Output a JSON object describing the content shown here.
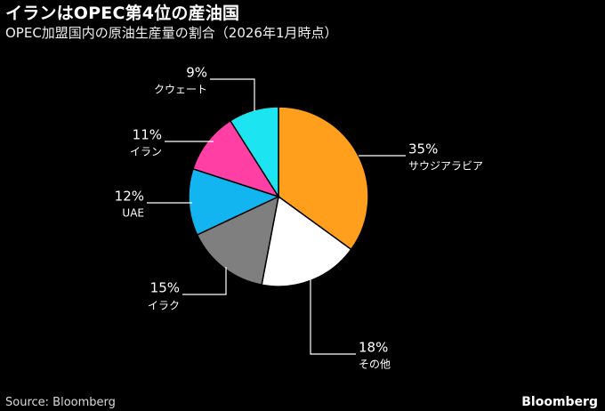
{
  "title": "イランはOPEC第4位の産油国",
  "subtitle": "OPEC加盟国内の原油生産量の割合（2026年1月時点）",
  "source": "Source: Bloomberg",
  "brand": "Bloomberg",
  "chart_data": {
    "type": "pie",
    "title": "イランはOPEC第4位の産油国",
    "subtitle": "OPEC加盟国内の原油生産量の割合（2026年1月時点）",
    "unit": "%",
    "start_angle": "12 o'clock",
    "direction": "clockwise",
    "slices": [
      {
        "label": "サウジアラビア",
        "value": 35,
        "value_label": "35%",
        "color": "#ff9f1c"
      },
      {
        "label": "その他",
        "value": 18,
        "value_label": "18%",
        "color": "#ffffff"
      },
      {
        "label": "イラク",
        "value": 15,
        "value_label": "15%",
        "color": "#7f7f7f"
      },
      {
        "label": "UAE",
        "value": 12,
        "value_label": "12%",
        "color": "#12b5f0"
      },
      {
        "label": "イラン",
        "value": 11,
        "value_label": "11%",
        "color": "#ff3fa4"
      },
      {
        "label": "クウェート",
        "value": 9,
        "value_label": "9%",
        "color": "#1ce4f0"
      }
    ]
  }
}
